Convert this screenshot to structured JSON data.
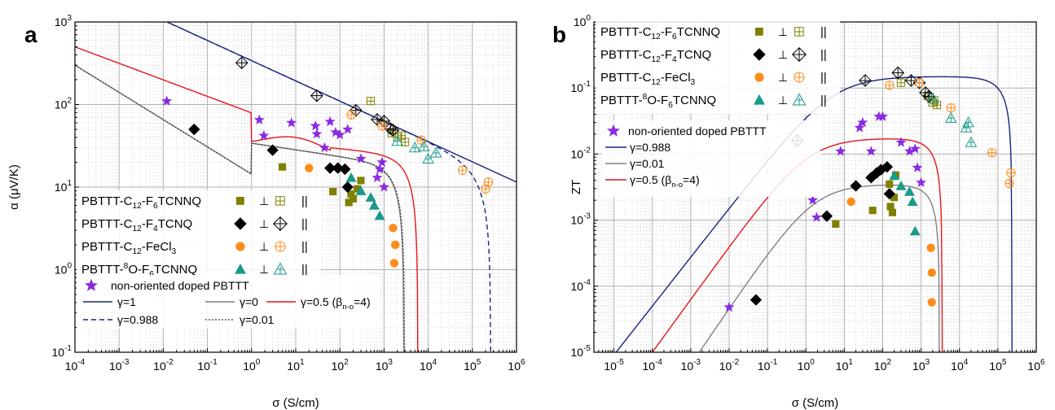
{
  "chart_data": [
    {
      "panel": "a",
      "type": "scatter",
      "xlabel": "σ (S/cm)",
      "ylabel": "α (μV/K)",
      "xscale": "log",
      "yscale": "log",
      "xlim": [
        0.0001,
        1000000
      ],
      "ylim": [
        0.1,
        1000
      ],
      "x_ticks": [
        "10-4",
        "10-3",
        "10-2",
        "10-1",
        "100",
        "101",
        "102",
        "103",
        "104",
        "105",
        "106"
      ],
      "y_ticks": [
        "10-1",
        "100",
        "101",
        "102",
        "103"
      ],
      "grid": true,
      "legend_entries": [
        {
          "label": "PBTTT-C12-F6TCNNQ",
          "perp": "⊥",
          "par": "||",
          "color": "#808000",
          "marker": "square"
        },
        {
          "label": "PBTTT-C12-F4TCNQ",
          "perp": "⊥",
          "par": "||",
          "color": "#000000",
          "marker": "diamond"
        },
        {
          "label": "PBTTT-C12-FeCl3",
          "perp": "⊥",
          "par": "||",
          "color": "#ff8c1a",
          "marker": "circle"
        },
        {
          "label": "PBTTT-8O-F6TCNNQ",
          "perp": "⊥",
          "par": "||",
          "color": "#1a9a8a",
          "marker": "triangle"
        }
      ],
      "legend_lines": [
        {
          "label": "non-oriented doped PBTTT",
          "color": "#8a2be2",
          "marker": "star"
        },
        {
          "label": "γ=1",
          "color": "#1a237e",
          "style": "solid"
        },
        {
          "label": "γ=0",
          "color": "#808080",
          "style": "solid"
        },
        {
          "label": "γ=0.5 (βn-o=4)",
          "color": "#e8141a",
          "style": "solid"
        },
        {
          "label": "γ=0.988",
          "color": "#1a237e",
          "style": "dashed"
        },
        {
          "label": "γ=0.01",
          "color": "#555555",
          "style": "dotted"
        }
      ],
      "series": [
        {
          "name": "PBTTT-C12-F6TCNNQ ⊥",
          "color": "#808000",
          "marker": "square",
          "points": [
            [
              5,
              17.5
            ],
            [
              70,
              8.8
            ],
            [
              200,
              7.2
            ],
            [
              180,
              8.2
            ],
            [
              250,
              9.5
            ],
            [
              160,
              6.5
            ],
            [
              300,
              12
            ]
          ]
        },
        {
          "name": "PBTTT-C12-F6TCNNQ ||",
          "color": "#808000",
          "marker": "square-open",
          "points": [
            [
              500,
              110
            ],
            [
              1500,
              45
            ],
            [
              2000,
              40
            ],
            [
              2500,
              42
            ],
            [
              3000,
              35
            ]
          ]
        },
        {
          "name": "PBTTT-C12-F4TCNQ ⊥",
          "color": "#000000",
          "marker": "diamond",
          "points": [
            [
              0.05,
              50
            ],
            [
              3,
              28
            ],
            [
              60,
              17
            ],
            [
              90,
              17
            ],
            [
              130,
              16.5
            ],
            [
              150,
              10
            ]
          ]
        },
        {
          "name": "PBTTT-C12-F4TCNQ ||",
          "color": "#000000",
          "marker": "diamond-open",
          "points": [
            [
              0.6,
              320
            ],
            [
              30,
              128
            ],
            [
              230,
              85
            ],
            [
              700,
              66
            ],
            [
              1000,
              63
            ],
            [
              1400,
              51
            ],
            [
              1600,
              49
            ]
          ]
        },
        {
          "name": "PBTTT-C12-FeCl3 ⊥",
          "color": "#ff8c1a",
          "marker": "circle",
          "points": [
            [
              20,
              17
            ],
            [
              1600,
              3.2
            ],
            [
              1800,
              2
            ],
            [
              1700,
              1.2
            ]
          ]
        },
        {
          "name": "PBTTT-C12-FeCl3 ||",
          "color": "#ff8c1a",
          "marker": "circle-open",
          "points": [
            [
              180,
              75
            ],
            [
              900,
              55
            ],
            [
              7000,
              37
            ],
            [
              200000,
              9.5
            ],
            [
              230000,
              11.5
            ],
            [
              60000,
              16
            ]
          ]
        },
        {
          "name": "PBTTT-8O-F6TCNNQ ⊥",
          "color": "#1a9a8a",
          "marker": "triangle",
          "points": [
            [
              180,
              13
            ],
            [
              300,
              9
            ],
            [
              500,
              7.5
            ],
            [
              600,
              6
            ],
            [
              800,
              4.5
            ]
          ]
        },
        {
          "name": "PBTTT-8O-F6TCNNQ ||",
          "color": "#1a9a8a",
          "marker": "triangle-open",
          "points": [
            [
              2000,
              36
            ],
            [
              5000,
              30
            ],
            [
              10000,
              22
            ],
            [
              15000,
              26
            ],
            [
              8000,
              31
            ]
          ]
        },
        {
          "name": "non-oriented doped PBTTT",
          "color": "#8a2be2",
          "marker": "star",
          "points": [
            [
              0.012,
              110
            ],
            [
              1.5,
              65
            ],
            [
              1.9,
              42
            ],
            [
              8,
              60
            ],
            [
              28,
              55
            ],
            [
              30,
              44
            ],
            [
              45,
              30
            ],
            [
              60,
              62
            ],
            [
              80,
              46
            ],
            [
              100,
              43
            ],
            [
              150,
              50
            ],
            [
              300,
              22
            ],
            [
              900,
              20
            ],
            [
              1000,
              10
            ],
            [
              700,
              13
            ],
            [
              800,
              16.5
            ]
          ]
        }
      ],
      "curves": [
        {
          "name": "γ=1",
          "color": "#1a237e",
          "dash": "none"
        },
        {
          "name": "γ=0.988",
          "color": "#1a237e",
          "dash": "6,4"
        },
        {
          "name": "γ=0",
          "color": "#808080",
          "dash": "none"
        },
        {
          "name": "γ=0.01",
          "color": "#444444",
          "dash": "2,2"
        },
        {
          "name": "γ=0.5 (βn-o=4)",
          "color": "#e8141a",
          "dash": "none"
        }
      ],
      "panel_label": "a"
    },
    {
      "panel": "b",
      "type": "scatter",
      "xlabel": "σ (S/cm)",
      "ylabel": "ZT",
      "xscale": "log",
      "yscale": "log",
      "xlim": [
        3e-06,
        1000000
      ],
      "ylim": [
        1e-05,
        1
      ],
      "x_ticks": [
        "10-5",
        "10-4",
        "10-3",
        "10-2",
        "10-1",
        "100",
        "101",
        "102",
        "103",
        "104",
        "105",
        "106"
      ],
      "y_ticks": [
        "10-5",
        "10-4",
        "10-3",
        "10-2",
        "10-1",
        "100"
      ],
      "grid": true,
      "legend_entries": [
        {
          "label": "PBTTT-C12-F6TCNNQ",
          "perp": "⊥",
          "par": "||",
          "color": "#808000",
          "marker": "square"
        },
        {
          "label": "PBTTT-C12-F4TCNQ",
          "perp": "⊥",
          "par": "||",
          "color": "#000000",
          "marker": "diamond"
        },
        {
          "label": "PBTTT-C12-FeCl3",
          "perp": "⊥",
          "par": "||",
          "color": "#ff8c1a",
          "marker": "circle"
        },
        {
          "label": "PBTTT-8O-F6TCNNQ",
          "perp": "⊥",
          "par": "||",
          "color": "#1a9a8a",
          "marker": "triangle"
        }
      ],
      "legend_lines": [
        {
          "label": "non-oriented doped PBTTT",
          "color": "#8a2be2",
          "marker": "star"
        },
        {
          "label": "γ=0.988",
          "color": "#1a237e",
          "style": "solid"
        },
        {
          "label": "γ=0.01",
          "color": "#808080",
          "style": "solid"
        },
        {
          "label": "γ=0.5 (βn-o=4)",
          "color": "#e8141a",
          "style": "solid"
        }
      ],
      "series": [
        {
          "name": "PBTTT-C12-F6TCNNQ ⊥",
          "color": "#808000",
          "marker": "square",
          "points": [
            [
              6,
              0.00087
            ],
            [
              55,
              0.0014
            ],
            [
              160,
              0.0016
            ],
            [
              180,
              0.0013
            ],
            [
              200,
              0.0022
            ],
            [
              150,
              0.0035
            ],
            [
              220,
              0.0048
            ]
          ]
        },
        {
          "name": "PBTTT-C12-F6TCNNQ ||",
          "color": "#808000",
          "marker": "square-open",
          "points": [
            [
              300,
              0.12
            ],
            [
              1500,
              0.075
            ],
            [
              2000,
              0.06
            ],
            [
              2200,
              0.065
            ],
            [
              2600,
              0.055
            ]
          ]
        },
        {
          "name": "PBTTT-C12-F4TCNQ ⊥",
          "color": "#000000",
          "marker": "diamond",
          "points": [
            [
              0.05,
              6.2e-05
            ],
            [
              3.5,
              0.00115
            ],
            [
              20,
              0.0033
            ],
            [
              50,
              0.0044
            ],
            [
              70,
              0.0052
            ],
            [
              90,
              0.0058
            ],
            [
              130,
              0.0064
            ],
            [
              150,
              0.0025
            ]
          ]
        },
        {
          "name": "PBTTT-C12-F4TCNQ ||",
          "color": "#000000",
          "marker": "diamond-open",
          "points": [
            [
              0.6,
              0.016
            ],
            [
              35,
              0.13
            ],
            [
              250,
              0.17
            ],
            [
              550,
              0.13
            ],
            [
              900,
              0.12
            ],
            [
              1300,
              0.085
            ],
            [
              1600,
              0.075
            ]
          ]
        },
        {
          "name": "PBTTT-C12-FeCl3 ⊥",
          "color": "#ff8c1a",
          "marker": "circle",
          "points": [
            [
              15,
              0.0019
            ],
            [
              1800,
              0.00038
            ],
            [
              1900,
              0.00016
            ],
            [
              1900,
              5.7e-05
            ]
          ]
        },
        {
          "name": "PBTTT-C12-FeCl3 ||",
          "color": "#ff8c1a",
          "marker": "circle-open",
          "points": [
            [
              150,
              0.11
            ],
            [
              900,
              0.12
            ],
            [
              6000,
              0.05
            ],
            [
              70000,
              0.0105
            ],
            [
              200000,
              0.0036
            ],
            [
              220000,
              0.0052
            ]
          ]
        },
        {
          "name": "PBTTT-8O-F6TCNNQ ⊥",
          "color": "#1a9a8a",
          "marker": "triangle",
          "points": [
            [
              200,
              0.0047
            ],
            [
              300,
              0.0033
            ],
            [
              500,
              0.0027
            ],
            [
              600,
              0.0019
            ],
            [
              700,
              0.00068
            ]
          ]
        },
        {
          "name": "PBTTT-8O-F6TCNNQ ||",
          "color": "#1a9a8a",
          "marker": "triangle-open",
          "points": [
            [
              2000,
              0.07
            ],
            [
              6000,
              0.035
            ],
            [
              15000,
              0.025
            ],
            [
              17000,
              0.03
            ],
            [
              20000,
              0.015
            ]
          ]
        },
        {
          "name": "non-oriented doped PBTTT",
          "color": "#8a2be2",
          "marker": "star",
          "points": [
            [
              0.01,
              4.8e-05
            ],
            [
              1.5,
              0.002
            ],
            [
              1.9,
              0.0011
            ],
            [
              8,
              0.011
            ],
            [
              25,
              0.025
            ],
            [
              30,
              0.03
            ],
            [
              50,
              0.011
            ],
            [
              80,
              0.037
            ],
            [
              100,
              0.037
            ],
            [
              300,
              0.015
            ],
            [
              500,
              0.011
            ],
            [
              800,
              0.0062
            ],
            [
              1000,
              0.0037
            ],
            [
              700,
              0.012
            ]
          ]
        }
      ],
      "curves": [
        {
          "name": "γ=0.988",
          "color": "#1a237e",
          "dash": "none"
        },
        {
          "name": "γ=0.01",
          "color": "#808080",
          "dash": "none"
        },
        {
          "name": "γ=0.5 (βn-o=4)",
          "color": "#e8141a",
          "dash": "none"
        }
      ],
      "panel_label": "b"
    }
  ]
}
